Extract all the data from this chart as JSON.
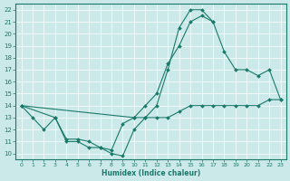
{
  "xlabel": "Humidex (Indice chaleur)",
  "background_color": "#cce9e9",
  "line_color": "#1a7a6a",
  "xlim": [
    -0.5,
    23.5
  ],
  "ylim": [
    9.5,
    22.5
  ],
  "xticks": [
    0,
    1,
    2,
    3,
    4,
    5,
    6,
    7,
    8,
    9,
    10,
    11,
    12,
    13,
    14,
    15,
    16,
    17,
    18,
    19,
    20,
    21,
    22,
    23
  ],
  "yticks": [
    10,
    11,
    12,
    13,
    14,
    15,
    16,
    17,
    18,
    19,
    20,
    21,
    22
  ],
  "line1_x": [
    0,
    1,
    2,
    3,
    4,
    5,
    6,
    7,
    8,
    9,
    10,
    11,
    12,
    13,
    14,
    15,
    16,
    17
  ],
  "line1_y": [
    14,
    13,
    12,
    13,
    11,
    11,
    10.5,
    10.5,
    10,
    9.8,
    12,
    13,
    14,
    17,
    20.5,
    22,
    22,
    21
  ],
  "line2_x": [
    0,
    10,
    11,
    12,
    13,
    14,
    15,
    16,
    17,
    18,
    19,
    20,
    21,
    22,
    23
  ],
  "line2_y": [
    14,
    13,
    14,
    15,
    17.5,
    19,
    21,
    21.5,
    21,
    18.5,
    17,
    17,
    16.5,
    17,
    14.5
  ],
  "line3_x": [
    0,
    3,
    4,
    5,
    6,
    7,
    8,
    9,
    10,
    11,
    12,
    13,
    14,
    15,
    16,
    17,
    18,
    19,
    20,
    21,
    22,
    23
  ],
  "line3_y": [
    14,
    13,
    11.2,
    11.2,
    11,
    10.5,
    10.3,
    12.5,
    13,
    13,
    13,
    13,
    13.5,
    14,
    14,
    14,
    14,
    14,
    14,
    14,
    14.5,
    14.5
  ]
}
